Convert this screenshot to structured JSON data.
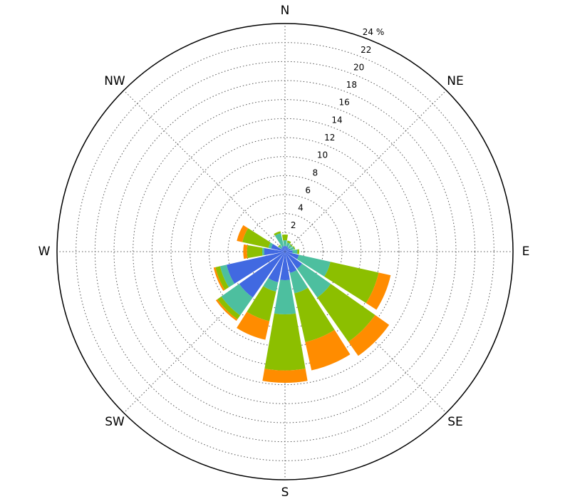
{
  "chart_data": {
    "type": "windrose",
    "categories": [
      null,
      null,
      null,
      null,
      null,
      null,
      null,
      null,
      null,
      null,
      null,
      null,
      null,
      null,
      null,
      null
    ],
    "angle_labels": [
      "N",
      "NE",
      "E",
      "SE",
      "S",
      "SW",
      "W",
      "NW"
    ],
    "series": [
      {
        "color": "#4169e1",
        "values": [
          0.6,
          0.6,
          0.5,
          0.6,
          0.8,
          1.5,
          2.2,
          2.3,
          3.0,
          3.3,
          5.9,
          6.3,
          2.2,
          1.5,
          0.5,
          0.6
        ]
      },
      {
        "color": "#4dbf9f",
        "values": [
          0.6,
          0.4,
          0.4,
          0.4,
          0.5,
          3.4,
          3.7,
          2.2,
          3.6,
          1.0,
          2.3,
          0.7,
          0.2,
          0.3,
          0.3,
          1.4
        ]
      },
      {
        "color": "#8cbf00",
        "values": [
          0.6,
          0.2,
          0.1,
          0.1,
          0.2,
          5.2,
          5.7,
          5.25,
          5.9,
          3.2,
          0.5,
          0.5,
          1.6,
          2.8,
          0.1,
          0.2
        ]
      },
      {
        "color": "#ff8c00",
        "values": [
          0,
          0,
          0,
          0,
          0,
          1.3,
          1.8,
          3.05,
          1.3,
          2.0,
          0.2,
          0.2,
          0.4,
          0.6,
          0,
          0
        ]
      }
    ],
    "rlim": [
      0,
      24
    ],
    "rticks": [
      2,
      4,
      6,
      8,
      10,
      12,
      14,
      16,
      18,
      20,
      22,
      {
        "value": 24,
        "label": "24 %"
      }
    ],
    "grid": true
  }
}
